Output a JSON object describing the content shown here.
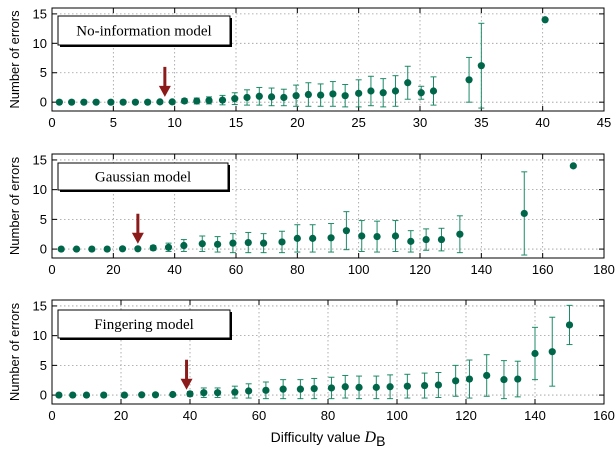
{
  "chart_data": [
    {
      "type": "scatter",
      "label_box": "No-information model",
      "ylabel": "Number of errors",
      "xlim": [
        0,
        45
      ],
      "ylim": [
        -1.5,
        16
      ],
      "xticks": [
        0,
        5,
        10,
        15,
        20,
        25,
        30,
        35,
        40,
        45
      ],
      "yticks": [
        0,
        5,
        10,
        15
      ],
      "grid": true,
      "arrow_x": 9.2,
      "points": [
        {
          "x": 0.6,
          "y": 0,
          "err": 0
        },
        {
          "x": 1.6,
          "y": 0,
          "err": 0
        },
        {
          "x": 2.6,
          "y": 0,
          "err": 0
        },
        {
          "x": 3.6,
          "y": 0,
          "err": 0
        },
        {
          "x": 4.8,
          "y": 0,
          "err": 0
        },
        {
          "x": 5.8,
          "y": 0,
          "err": 0
        },
        {
          "x": 6.8,
          "y": 0,
          "err": 0
        },
        {
          "x": 7.8,
          "y": 0,
          "err": 0
        },
        {
          "x": 8.8,
          "y": 0.05,
          "err": 0.2
        },
        {
          "x": 9.8,
          "y": 0.05,
          "err": 0.2
        },
        {
          "x": 10.8,
          "y": 0.2,
          "err": 0.4
        },
        {
          "x": 11.8,
          "y": 0.2,
          "err": 0.5
        },
        {
          "x": 12.8,
          "y": 0.3,
          "err": 0.6
        },
        {
          "x": 13.9,
          "y": 0.35,
          "err": 0.8
        },
        {
          "x": 14.9,
          "y": 0.6,
          "err": 1.0
        },
        {
          "x": 15.9,
          "y": 0.8,
          "err": 1.3
        },
        {
          "x": 16.9,
          "y": 1.0,
          "err": 1.5
        },
        {
          "x": 17.9,
          "y": 0.9,
          "err": 1.5
        },
        {
          "x": 18.9,
          "y": 0.8,
          "err": 1.4
        },
        {
          "x": 19.9,
          "y": 1.1,
          "err": 1.8
        },
        {
          "x": 20.9,
          "y": 1.3,
          "err": 2.0
        },
        {
          "x": 21.9,
          "y": 1.2,
          "err": 1.9
        },
        {
          "x": 22.9,
          "y": 1.4,
          "err": 2.1
        },
        {
          "x": 23.9,
          "y": 1.1,
          "err": 1.9
        },
        {
          "x": 25.0,
          "y": 1.5,
          "err": 2.3
        },
        {
          "x": 26.0,
          "y": 1.9,
          "err": 2.5
        },
        {
          "x": 27.0,
          "y": 1.6,
          "err": 2.4
        },
        {
          "x": 28.0,
          "y": 1.9,
          "err": 2.6
        },
        {
          "x": 29.0,
          "y": 3.3,
          "err": 2.8
        },
        {
          "x": 30.1,
          "y": 1.6,
          "err": 1.1
        },
        {
          "x": 31.1,
          "y": 1.9,
          "err": 2.4
        },
        {
          "x": 34.0,
          "y": 3.8,
          "err": 3.8
        },
        {
          "x": 35.0,
          "y": 6.2,
          "err": 7.2
        },
        {
          "x": 40.2,
          "y": 14.0,
          "err": 0
        }
      ]
    },
    {
      "type": "scatter",
      "label_box": "Gaussian model",
      "ylabel": "Number of errors",
      "xlim": [
        0,
        180
      ],
      "ylim": [
        -1.5,
        16
      ],
      "xticks": [
        0,
        20,
        40,
        60,
        80,
        100,
        120,
        140,
        160,
        180
      ],
      "yticks": [
        0,
        5,
        10,
        15
      ],
      "grid": true,
      "arrow_x": 28,
      "points": [
        {
          "x": 3,
          "y": 0,
          "err": 0
        },
        {
          "x": 8,
          "y": 0,
          "err": 0
        },
        {
          "x": 13,
          "y": 0,
          "err": 0
        },
        {
          "x": 18,
          "y": 0,
          "err": 0
        },
        {
          "x": 23,
          "y": 0.05,
          "err": 0.1
        },
        {
          "x": 28,
          "y": 0.05,
          "err": 0.2
        },
        {
          "x": 33,
          "y": 0.2,
          "err": 0.4
        },
        {
          "x": 38,
          "y": 0.3,
          "err": 0.7
        },
        {
          "x": 43,
          "y": 0.6,
          "err": 1.0
        },
        {
          "x": 49,
          "y": 0.9,
          "err": 1.3
        },
        {
          "x": 54,
          "y": 0.8,
          "err": 1.3
        },
        {
          "x": 59,
          "y": 1.0,
          "err": 1.6
        },
        {
          "x": 64,
          "y": 1.1,
          "err": 1.7
        },
        {
          "x": 69,
          "y": 1.0,
          "err": 1.6
        },
        {
          "x": 75,
          "y": 1.2,
          "err": 1.8
        },
        {
          "x": 80,
          "y": 1.8,
          "err": 2.3
        },
        {
          "x": 85,
          "y": 1.8,
          "err": 2.3
        },
        {
          "x": 91,
          "y": 1.9,
          "err": 2.4
        },
        {
          "x": 96,
          "y": 3.1,
          "err": 3.2
        },
        {
          "x": 101,
          "y": 2.2,
          "err": 2.6
        },
        {
          "x": 106,
          "y": 2.1,
          "err": 2.6
        },
        {
          "x": 112,
          "y": 2.2,
          "err": 2.6
        },
        {
          "x": 117,
          "y": 1.3,
          "err": 1.8
        },
        {
          "x": 122,
          "y": 1.6,
          "err": 1.8
        },
        {
          "x": 127,
          "y": 1.6,
          "err": 1.9
        },
        {
          "x": 133,
          "y": 2.5,
          "err": 3.1
        },
        {
          "x": 154,
          "y": 6.0,
          "err": 7.0
        },
        {
          "x": 170,
          "y": 14.0,
          "err": 0
        }
      ]
    },
    {
      "type": "scatter",
      "label_box": "Fingering model",
      "ylabel": "Number of errors",
      "xlabel": "Difficulty value",
      "xlabel_math": "D",
      "xlabel_sub": "B",
      "xlim": [
        0,
        160
      ],
      "ylim": [
        -1.5,
        16
      ],
      "xticks": [
        0,
        20,
        40,
        60,
        80,
        100,
        120,
        140,
        160
      ],
      "yticks": [
        0,
        5,
        10,
        15
      ],
      "grid": true,
      "arrow_x": 39,
      "points": [
        {
          "x": 2,
          "y": 0,
          "err": 0
        },
        {
          "x": 6,
          "y": 0,
          "err": 0
        },
        {
          "x": 10,
          "y": 0,
          "err": 0
        },
        {
          "x": 15,
          "y": 0,
          "err": 0
        },
        {
          "x": 21,
          "y": 0,
          "err": 0
        },
        {
          "x": 26,
          "y": 0.05,
          "err": 0.1
        },
        {
          "x": 30,
          "y": 0.05,
          "err": 0.1
        },
        {
          "x": 35,
          "y": 0.1,
          "err": 0.2
        },
        {
          "x": 40,
          "y": 0.2,
          "err": 0.4
        },
        {
          "x": 44,
          "y": 0.4,
          "err": 0.8
        },
        {
          "x": 48,
          "y": 0.4,
          "err": 0.8
        },
        {
          "x": 53,
          "y": 0.5,
          "err": 1.0
        },
        {
          "x": 57,
          "y": 0.7,
          "err": 1.2
        },
        {
          "x": 62,
          "y": 0.8,
          "err": 1.4
        },
        {
          "x": 67,
          "y": 1.0,
          "err": 1.6
        },
        {
          "x": 72,
          "y": 1.0,
          "err": 1.6
        },
        {
          "x": 76,
          "y": 1.1,
          "err": 1.7
        },
        {
          "x": 81,
          "y": 1.2,
          "err": 1.8
        },
        {
          "x": 85,
          "y": 1.4,
          "err": 1.9
        },
        {
          "x": 89,
          "y": 1.3,
          "err": 1.9
        },
        {
          "x": 94,
          "y": 1.3,
          "err": 1.9
        },
        {
          "x": 98,
          "y": 1.4,
          "err": 2.0
        },
        {
          "x": 103,
          "y": 1.5,
          "err": 2.0
        },
        {
          "x": 108,
          "y": 1.6,
          "err": 2.1
        },
        {
          "x": 112,
          "y": 1.7,
          "err": 2.1
        },
        {
          "x": 117,
          "y": 2.4,
          "err": 2.6
        },
        {
          "x": 121,
          "y": 2.7,
          "err": 3.2
        },
        {
          "x": 126,
          "y": 3.3,
          "err": 3.5
        },
        {
          "x": 131,
          "y": 2.6,
          "err": 3.2
        },
        {
          "x": 135,
          "y": 2.7,
          "err": 3.0
        },
        {
          "x": 140,
          "y": 7.0,
          "err": 4.4
        },
        {
          "x": 145,
          "y": 7.3,
          "err": 5.8
        },
        {
          "x": 150,
          "y": 11.8,
          "err": 3.3
        }
      ]
    }
  ],
  "colors": {
    "marker": "#00664a",
    "errorbar": "#1d8a68",
    "arrow": "#8b1a1a",
    "grid": "#9a9a9a"
  }
}
